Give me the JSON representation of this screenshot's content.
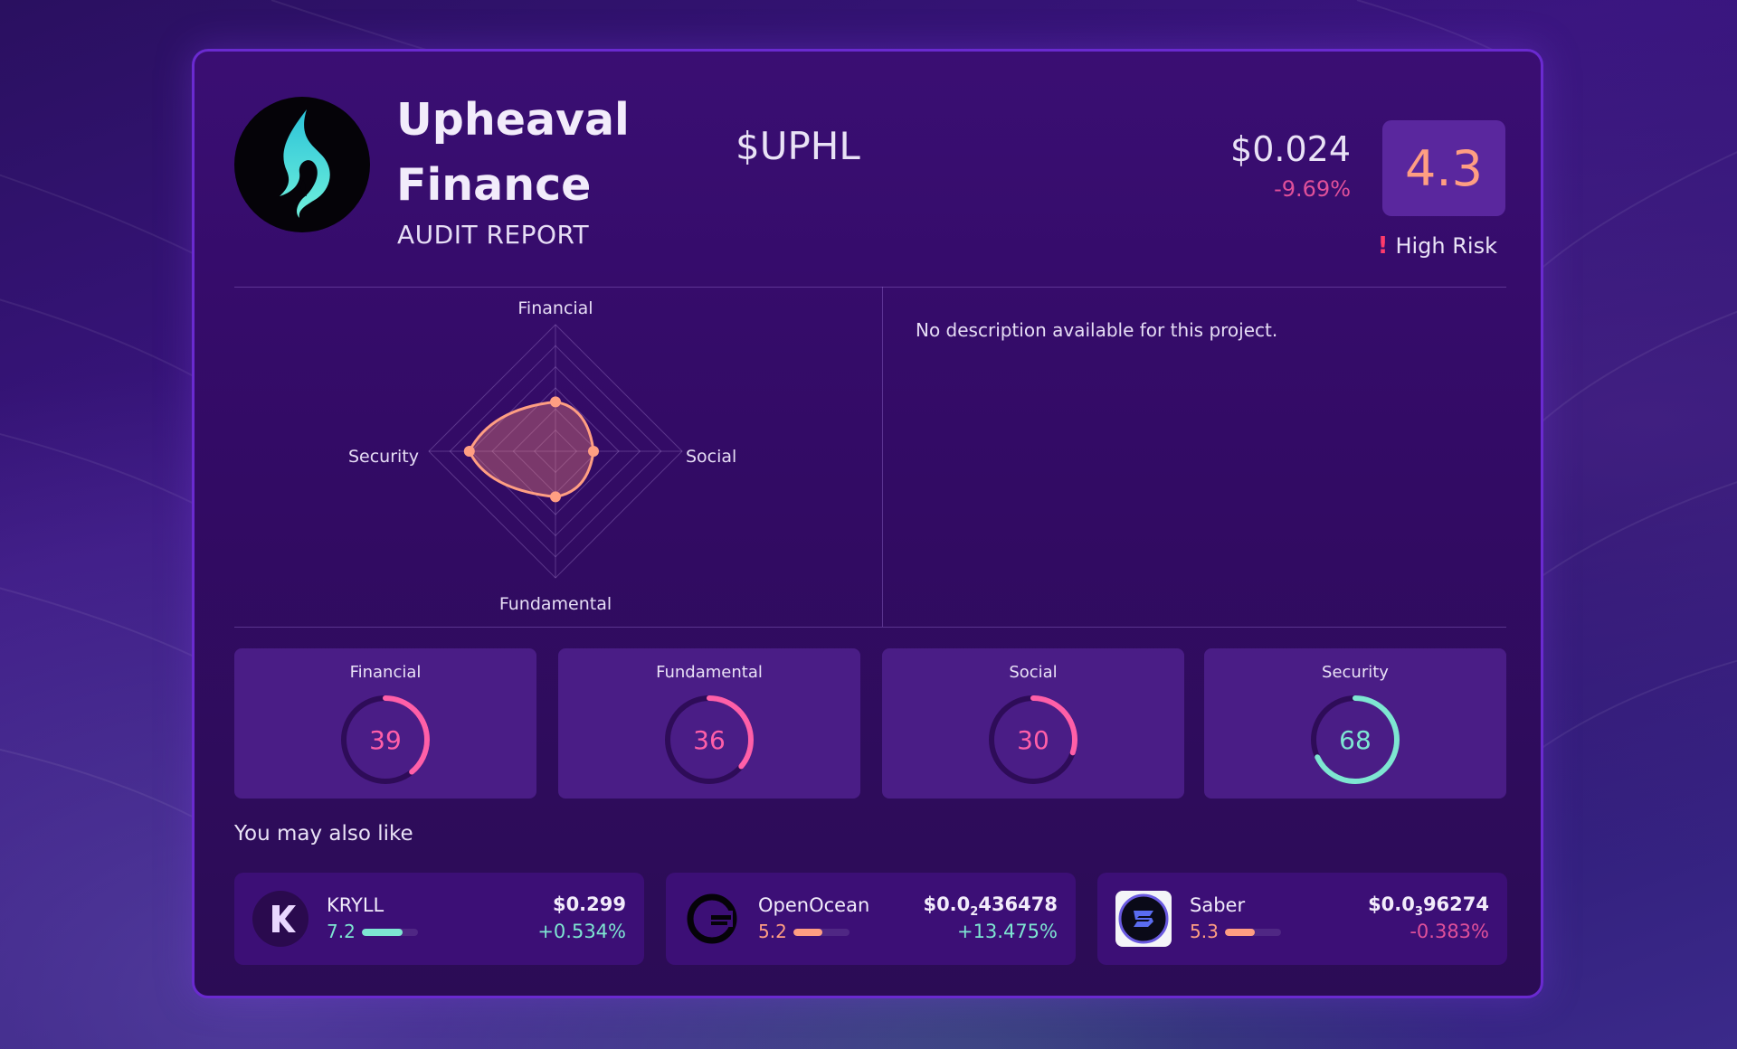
{
  "project": {
    "name": "Upheaval Finance",
    "subtitle": "AUDIT REPORT",
    "ticker": "$UPHL",
    "price": "$0.024",
    "change": "-9.69%",
    "score": "4.3",
    "risk_label": "High Risk",
    "description": "No description available for this project."
  },
  "radar": {
    "axes": [
      {
        "label": "Financial",
        "value": 39
      },
      {
        "label": "Social",
        "value": 30
      },
      {
        "label": "Fundamental",
        "value": 36
      },
      {
        "label": "Security",
        "value": 68
      }
    ],
    "max": 100
  },
  "scores": [
    {
      "label": "Financial",
      "value": "39",
      "fraction": 0.39,
      "color": "#ff5fa8"
    },
    {
      "label": "Fundamental",
      "value": "36",
      "fraction": 0.36,
      "color": "#ff5fa8"
    },
    {
      "label": "Social",
      "value": "30",
      "fraction": 0.3,
      "color": "#ff5fa8"
    },
    {
      "label": "Security",
      "value": "68",
      "fraction": 0.68,
      "color": "#7ee6d2"
    }
  ],
  "recommendations": {
    "title": "You may also like",
    "items": [
      {
        "name": "KRYLL",
        "score": "7.2",
        "score_fraction": 0.72,
        "price_main": "$0.299",
        "price_sub": "",
        "price_tail": "",
        "change": "+0.534%",
        "positive": true
      },
      {
        "name": "OpenOcean",
        "score": "5.2",
        "score_fraction": 0.52,
        "price_main": "$0.0",
        "price_sub": "2",
        "price_tail": "436478",
        "change": "+13.475%",
        "positive": true
      },
      {
        "name": "Saber",
        "score": "5.3",
        "score_fraction": 0.53,
        "price_main": "$0.0",
        "price_sub": "3",
        "price_tail": "96274",
        "change": "-0.383%",
        "positive": false
      }
    ]
  },
  "colors": {
    "accent": "#ff9e82",
    "positive": "#7ee6d2",
    "negative": "#e0509a",
    "risk": "#ff3b6b"
  }
}
